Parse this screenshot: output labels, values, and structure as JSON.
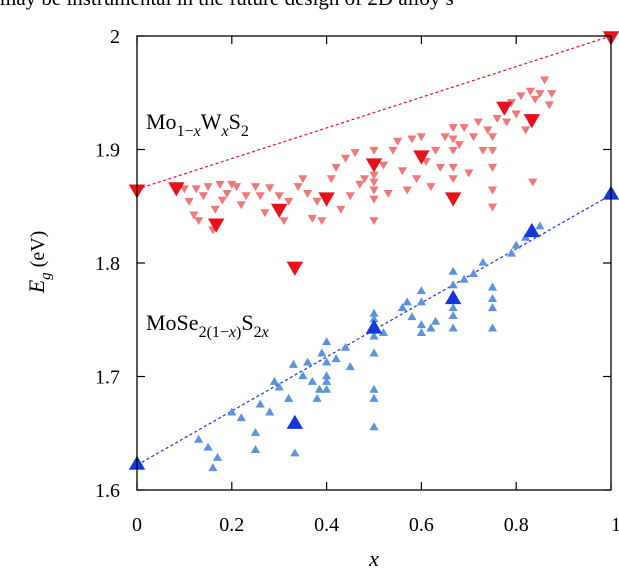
{
  "top_text": "may be instrumental in the future design of 2D alloy s",
  "chart_data": {
    "type": "scatter",
    "xlabel": "x",
    "ylabel": {
      "base": "E",
      "sub": "g",
      "unit": " (eV)"
    },
    "xlim": [
      0,
      1
    ],
    "ylim": [
      1.6,
      2.0
    ],
    "x_ticks": [
      "0",
      "0.2",
      "0.4",
      "0.6",
      "0.8",
      "1"
    ],
    "y_ticks": [
      "1.6",
      "1.7",
      "1.8",
      "1.9",
      "2"
    ],
    "grid": false,
    "series": [
      {
        "label_parts": [
          {
            "t": "Mo",
            "style": "normal"
          },
          {
            "t": "1−",
            "style": "sub"
          },
          {
            "t": "x",
            "style": "subitalic"
          },
          {
            "t": "W",
            "style": "normal"
          },
          {
            "t": "x",
            "style": "subitalic"
          },
          {
            "t": "S",
            "style": "normal"
          },
          {
            "t": "2",
            "style": "sub"
          }
        ],
        "color": "#f07878",
        "highlight_color": "#e8101a",
        "marker": "triangle-down",
        "fit": [
          [
            0,
            1.865
          ],
          [
            1,
            2.0
          ]
        ],
        "highlight_points": [
          [
            0,
            1.865
          ],
          [
            0.083,
            1.867
          ],
          [
            0.167,
            1.835
          ],
          [
            0.3,
            1.848
          ],
          [
            0.333,
            1.797
          ],
          [
            0.4,
            1.858
          ],
          [
            0.5,
            1.888
          ],
          [
            0.6,
            1.895
          ],
          [
            0.667,
            1.858
          ],
          [
            0.775,
            1.938
          ],
          [
            0.833,
            1.927
          ],
          [
            1.0,
            2.0
          ]
        ],
        "points": [
          [
            0.1,
            1.866
          ],
          [
            0.11,
            1.855
          ],
          [
            0.12,
            1.843
          ],
          [
            0.125,
            1.866
          ],
          [
            0.13,
            1.838
          ],
          [
            0.14,
            1.86
          ],
          [
            0.15,
            1.868
          ],
          [
            0.16,
            1.83
          ],
          [
            0.165,
            1.848
          ],
          [
            0.175,
            1.87
          ],
          [
            0.18,
            1.856
          ],
          [
            0.19,
            1.862
          ],
          [
            0.2,
            1.87
          ],
          [
            0.21,
            1.868
          ],
          [
            0.22,
            1.852
          ],
          [
            0.23,
            1.86
          ],
          [
            0.25,
            1.868
          ],
          [
            0.26,
            1.86
          ],
          [
            0.27,
            1.845
          ],
          [
            0.28,
            1.867
          ],
          [
            0.3,
            1.86
          ],
          [
            0.31,
            1.838
          ],
          [
            0.32,
            1.855
          ],
          [
            0.34,
            1.868
          ],
          [
            0.35,
            1.875
          ],
          [
            0.36,
            1.862
          ],
          [
            0.37,
            1.84
          ],
          [
            0.38,
            1.855
          ],
          [
            0.39,
            1.838
          ],
          [
            0.41,
            1.875
          ],
          [
            0.42,
            1.885
          ],
          [
            0.43,
            1.848
          ],
          [
            0.44,
            1.893
          ],
          [
            0.45,
            1.86
          ],
          [
            0.46,
            1.898
          ],
          [
            0.47,
            1.87
          ],
          [
            0.48,
            1.875
          ],
          [
            0.5,
            1.9
          ],
          [
            0.5,
            1.878
          ],
          [
            0.5,
            1.872
          ],
          [
            0.5,
            1.865
          ],
          [
            0.5,
            1.857
          ],
          [
            0.5,
            1.838
          ],
          [
            0.52,
            1.887
          ],
          [
            0.53,
            1.862
          ],
          [
            0.54,
            1.9
          ],
          [
            0.55,
            1.908
          ],
          [
            0.56,
            1.882
          ],
          [
            0.57,
            1.865
          ],
          [
            0.58,
            1.91
          ],
          [
            0.59,
            1.875
          ],
          [
            0.6,
            1.912
          ],
          [
            0.61,
            1.89
          ],
          [
            0.62,
            1.868
          ],
          [
            0.63,
            1.9
          ],
          [
            0.64,
            1.885
          ],
          [
            0.65,
            1.912
          ],
          [
            0.667,
            1.92
          ],
          [
            0.667,
            1.91
          ],
          [
            0.667,
            1.9
          ],
          [
            0.667,
            1.885
          ],
          [
            0.667,
            1.875
          ],
          [
            0.68,
            1.905
          ],
          [
            0.69,
            1.92
          ],
          [
            0.7,
            1.88
          ],
          [
            0.71,
            1.912
          ],
          [
            0.72,
            1.925
          ],
          [
            0.73,
            1.9
          ],
          [
            0.74,
            1.918
          ],
          [
            0.75,
            1.912
          ],
          [
            0.75,
            1.9
          ],
          [
            0.75,
            1.885
          ],
          [
            0.75,
            1.865
          ],
          [
            0.75,
            1.85
          ],
          [
            0.76,
            1.928
          ],
          [
            0.78,
            1.925
          ],
          [
            0.79,
            1.942
          ],
          [
            0.8,
            1.932
          ],
          [
            0.81,
            1.948
          ],
          [
            0.82,
            1.918
          ],
          [
            0.83,
            1.952
          ],
          [
            0.84,
            1.945
          ],
          [
            0.835,
            1.872
          ],
          [
            0.85,
            1.95
          ],
          [
            0.86,
            1.962
          ],
          [
            0.87,
            1.94
          ],
          [
            0.875,
            1.95
          ]
        ]
      },
      {
        "label_parts": [
          {
            "t": "MoSe",
            "style": "normal"
          },
          {
            "t": "2(1−",
            "style": "sub"
          },
          {
            "t": "x",
            "style": "subitalic"
          },
          {
            "t": ")",
            "style": "sub"
          },
          {
            "t": "S",
            "style": "normal"
          },
          {
            "t": "2",
            "style": "sub"
          },
          {
            "t": "x",
            "style": "subitalic"
          }
        ],
        "color": "#5b93dd",
        "highlight_color": "#1438d8",
        "marker": "triangle-up",
        "fit": [
          [
            0,
            1.622
          ],
          [
            1,
            1.86
          ]
        ],
        "highlight_points": [
          [
            0,
            1.622
          ],
          [
            0.333,
            1.658
          ],
          [
            0.5,
            1.742
          ],
          [
            0.667,
            1.768
          ],
          [
            0.833,
            1.827
          ],
          [
            1.0,
            1.86
          ]
        ],
        "points": [
          [
            0.13,
            1.644
          ],
          [
            0.15,
            1.637
          ],
          [
            0.16,
            1.619
          ],
          [
            0.17,
            1.628
          ],
          [
            0.2,
            1.668
          ],
          [
            0.22,
            1.663
          ],
          [
            0.25,
            1.65
          ],
          [
            0.25,
            1.635
          ],
          [
            0.26,
            1.675
          ],
          [
            0.28,
            1.668
          ],
          [
            0.29,
            1.695
          ],
          [
            0.3,
            1.69
          ],
          [
            0.32,
            1.68
          ],
          [
            0.33,
            1.71
          ],
          [
            0.333,
            1.632
          ],
          [
            0.35,
            1.7
          ],
          [
            0.36,
            1.712
          ],
          [
            0.37,
            1.695
          ],
          [
            0.38,
            1.68
          ],
          [
            0.385,
            1.688
          ],
          [
            0.39,
            1.72
          ],
          [
            0.4,
            1.73
          ],
          [
            0.4,
            1.712
          ],
          [
            0.4,
            1.7
          ],
          [
            0.4,
            1.695
          ],
          [
            0.4,
            1.688
          ],
          [
            0.42,
            1.715
          ],
          [
            0.44,
            1.725
          ],
          [
            0.45,
            1.708
          ],
          [
            0.5,
            1.755
          ],
          [
            0.5,
            1.75
          ],
          [
            0.5,
            1.735
          ],
          [
            0.5,
            1.72
          ],
          [
            0.5,
            1.688
          ],
          [
            0.5,
            1.68
          ],
          [
            0.5,
            1.655
          ],
          [
            0.52,
            1.738
          ],
          [
            0.56,
            1.76
          ],
          [
            0.57,
            1.765
          ],
          [
            0.58,
            1.752
          ],
          [
            0.6,
            1.775
          ],
          [
            0.6,
            1.765
          ],
          [
            0.6,
            1.745
          ],
          [
            0.6,
            1.738
          ],
          [
            0.62,
            1.742
          ],
          [
            0.63,
            1.748
          ],
          [
            0.667,
            1.792
          ],
          [
            0.667,
            1.78
          ],
          [
            0.667,
            1.76
          ],
          [
            0.667,
            1.753
          ],
          [
            0.667,
            1.742
          ],
          [
            0.69,
            1.785
          ],
          [
            0.71,
            1.79
          ],
          [
            0.73,
            1.8
          ],
          [
            0.75,
            1.778
          ],
          [
            0.75,
            1.768
          ],
          [
            0.75,
            1.76
          ],
          [
            0.75,
            1.742
          ],
          [
            0.79,
            1.808
          ],
          [
            0.8,
            1.815
          ],
          [
            0.82,
            1.822
          ],
          [
            0.84,
            1.825
          ],
          [
            0.85,
            1.832
          ]
        ]
      }
    ]
  }
}
